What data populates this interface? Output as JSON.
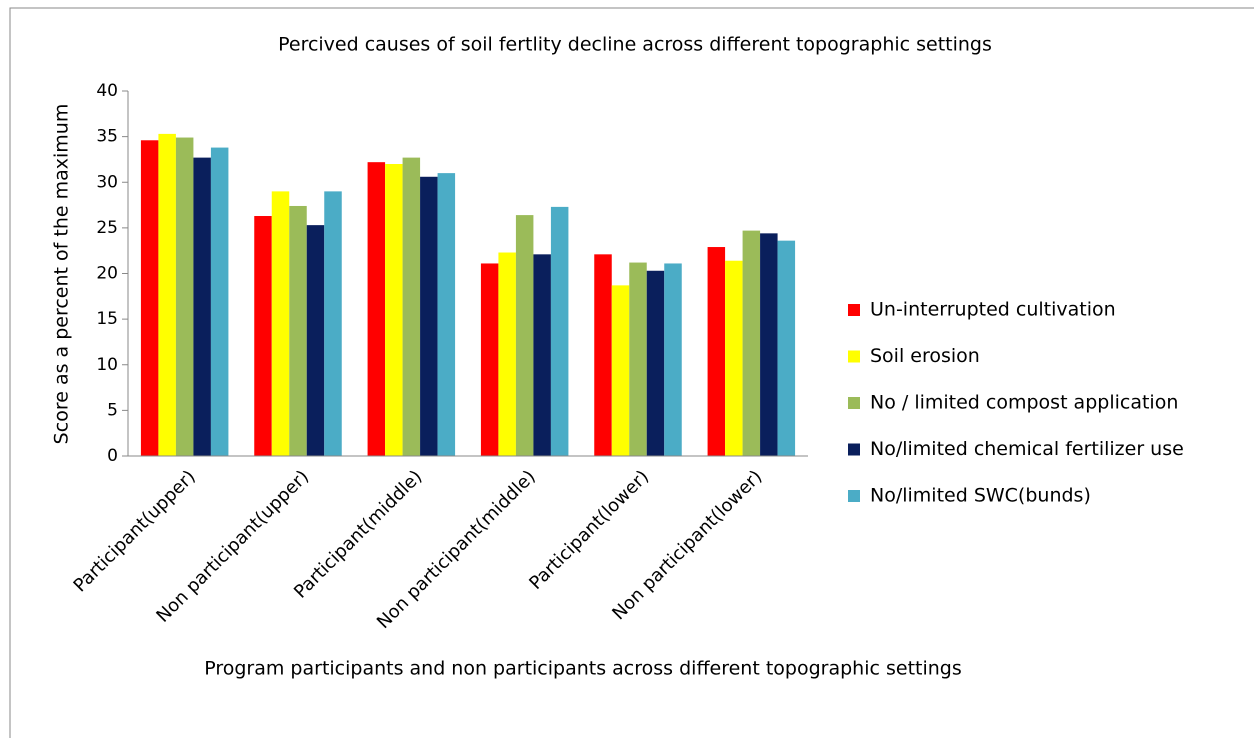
{
  "chart_data": {
    "type": "bar",
    "title": "Percived causes of soil fertlity decline across different topographic settings",
    "x_label": "Program participants and non participants across different topographic settings",
    "y_label": "Score as a percent of the maximum",
    "categories": [
      "Participant(upper)",
      "Non participant(upper)",
      "Participant(middle)",
      "Non participant(middle)",
      "Participant(lower)",
      "Non participant(lower)"
    ],
    "series": [
      {
        "name": "Un-interrupted cultivation",
        "color": "#ff0000",
        "values": [
          34.6,
          26.3,
          32.2,
          21.1,
          22.1,
          22.9
        ]
      },
      {
        "name": "Soil erosion",
        "color": "#ffff00",
        "values": [
          35.3,
          29.0,
          32.0,
          22.3,
          18.7,
          21.4
        ]
      },
      {
        "name": "No / limited compost application",
        "color": "#9bbb59",
        "values": [
          34.9,
          27.4,
          32.7,
          26.4,
          21.2,
          24.7
        ]
      },
      {
        "name": "No/limited chemical fertilizer use",
        "color": "#0a1f5c",
        "values": [
          32.7,
          25.3,
          30.6,
          22.1,
          20.3,
          24.4
        ]
      },
      {
        "name": "No/limited SWC(bunds)",
        "color": "#4bacc6",
        "values": [
          33.8,
          29.0,
          31.0,
          27.3,
          21.1,
          23.6
        ]
      }
    ],
    "ylim": [
      0,
      40
    ],
    "yticks": [
      0,
      5,
      10,
      15,
      20,
      25,
      30,
      35,
      40
    ],
    "legend": "right"
  }
}
